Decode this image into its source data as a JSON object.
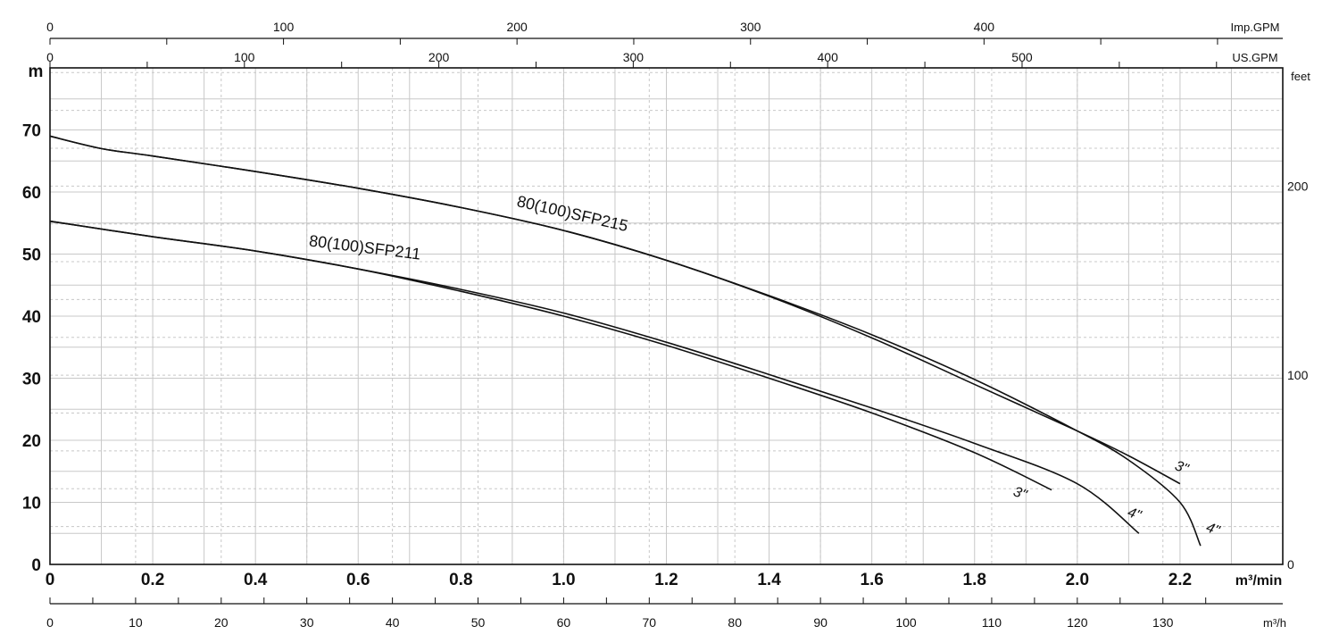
{
  "chart_data": {
    "type": "line",
    "xlabel": "m³/min",
    "ylabel": "m",
    "xlim": [
      0,
      2.4
    ],
    "ylim": [
      0,
      80
    ],
    "grid": true,
    "x_ticks": [
      "0",
      "0.2",
      "0.4",
      "0.6",
      "0.8",
      "1.0",
      "1.2",
      "1.4",
      "1.6",
      "1.8",
      "2.0",
      "2.2"
    ],
    "y_ticks": [
      "0",
      "10",
      "20",
      "30",
      "40",
      "50",
      "60",
      "70"
    ],
    "secondary_axes": {
      "bottom": {
        "label": "m³/h",
        "ticks": [
          "0",
          "10",
          "20",
          "30",
          "40",
          "50",
          "60",
          "70",
          "80",
          "90",
          "100",
          "110",
          "120",
          "130"
        ]
      },
      "top_us": {
        "label": "US.GPM",
        "ticks": [
          "0",
          "100",
          "200",
          "300",
          "400",
          "500"
        ]
      },
      "top_imp": {
        "label": "Imp.GPM",
        "ticks": [
          "0",
          "100",
          "200",
          "300",
          "400"
        ]
      },
      "right": {
        "label": "feet",
        "ticks": [
          "0",
          "100",
          "200"
        ]
      }
    },
    "series": [
      {
        "name": "80(100)SFP215",
        "variant": "3\"",
        "x": [
          0,
          0.1,
          0.2,
          0.4,
          0.6,
          0.8,
          1.0,
          1.2,
          1.4,
          1.6,
          1.8,
          2.0,
          2.1,
          2.2
        ],
        "y": [
          69,
          67,
          65.8,
          63.3,
          60.6,
          57.5,
          53.8,
          49,
          43.2,
          36.5,
          29,
          21.5,
          17.5,
          13
        ]
      },
      {
        "name": "80(100)SFP215",
        "variant": "4\"",
        "x": [
          0,
          0.1,
          0.2,
          0.4,
          0.6,
          0.8,
          1.0,
          1.2,
          1.4,
          1.6,
          1.8,
          2.0,
          2.1,
          2.2,
          2.24
        ],
        "y": [
          69,
          67,
          65.8,
          63.3,
          60.6,
          57.5,
          53.8,
          49,
          43.3,
          37,
          29.8,
          21.5,
          16.8,
          10,
          3
        ]
      },
      {
        "name": "80(100)SFP211",
        "variant": "3\"",
        "x": [
          0,
          0.2,
          0.4,
          0.6,
          0.8,
          1.0,
          1.2,
          1.4,
          1.6,
          1.8,
          1.95
        ],
        "y": [
          55.3,
          52.8,
          50.5,
          47.6,
          44,
          40,
          35.3,
          30,
          24.4,
          18,
          12
        ]
      },
      {
        "name": "80(100)SFP211",
        "variant": "4\"",
        "x": [
          0,
          0.2,
          0.4,
          0.6,
          0.8,
          1.0,
          1.2,
          1.4,
          1.6,
          1.8,
          2.0,
          2.12
        ],
        "y": [
          55.3,
          52.8,
          50.5,
          47.6,
          44.3,
          40.5,
          35.8,
          30.6,
          25.2,
          19.5,
          13,
          5
        ]
      }
    ],
    "curve_labels": [
      "80(100)SFP215",
      "80(100)SFP211"
    ],
    "size_labels": [
      "3\"",
      "4\"",
      "3\"",
      "4\""
    ],
    "colors": {
      "curve": "#111111",
      "grid": "#c8c8c8",
      "frame": "#111111"
    }
  }
}
